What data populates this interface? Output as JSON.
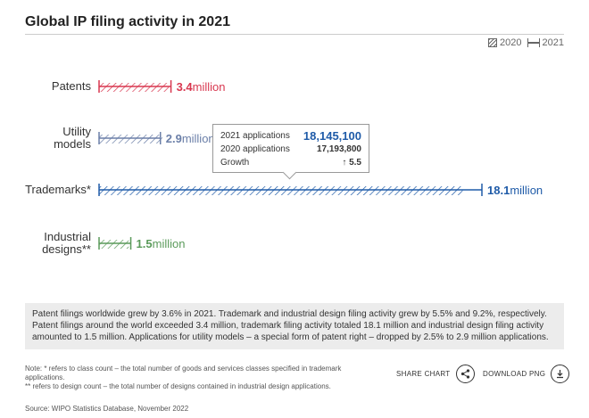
{
  "title": "Global IP filing activity in 2021",
  "legend": {
    "prev_label": "2020",
    "curr_label": "2021"
  },
  "chart_data": {
    "type": "bar",
    "title": "Global IP filing activity in 2021",
    "categories": [
      "Patents",
      "Utility models",
      "Trademarks*",
      "Industrial designs**"
    ],
    "category_lines": [
      [
        "Patents"
      ],
      [
        "Utility",
        "models"
      ],
      [
        "Trademarks*"
      ],
      [
        "Industrial",
        "designs**"
      ]
    ],
    "series": [
      {
        "name": "2020",
        "values": [
          3.3,
          3.0,
          17.19,
          1.4
        ]
      },
      {
        "name": "2021",
        "values": [
          3.4,
          2.9,
          18.1,
          1.5
        ]
      }
    ],
    "value_labels": [
      "3.4",
      "2.9",
      "18.1",
      "1.5"
    ],
    "unit": "million",
    "colors": [
      "#d8374f",
      "#6b7fa8",
      "#1f5ba8",
      "#5a9a5a"
    ],
    "xlim": [
      0,
      18.1
    ]
  },
  "tooltip": {
    "row1_label": "2021 applications",
    "row1_value": "18,145,100",
    "row2_label": "2020 applications",
    "row2_value": "17,193,800",
    "row3_label": "Growth",
    "row3_value": "5.5"
  },
  "summary": "Patent filings worldwide grew by 3.6% in 2021. Trademark and industrial design filing activity grew by 5.5% and 9.2%, respectively. Patent filings around the world exceeded 3.4 million, trademark filing activity totaled 18.1 million and industrial design filing activity amounted to 1.5 million. Applications for utility models – a special form of patent right – dropped by 2.5% to 2.9 million applications.",
  "footnote1": "Note: * refers to class count – the total number of goods and services classes specified in trademark applications.",
  "footnote2": "** refers to design count – the total number of designs contained in industrial design applications.",
  "source": "Source: WIPO Statistics Database, November 2022",
  "actions": {
    "share": "SHARE CHART",
    "download": "DOWNLOAD PNG"
  }
}
